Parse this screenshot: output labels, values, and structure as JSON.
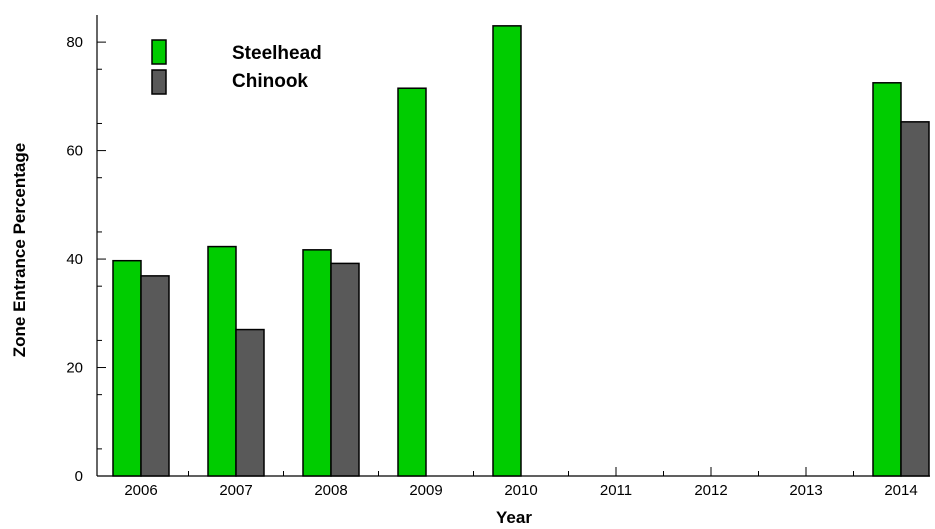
{
  "chart_data": {
    "type": "bar",
    "title": "",
    "xlabel": "Year",
    "ylabel": "Zone Entrance Percentage",
    "categories": [
      "2006",
      "2007",
      "2008",
      "2009",
      "2010",
      "2011",
      "2012",
      "2013",
      "2014"
    ],
    "series": [
      {
        "name": "Steelhead",
        "color": "#00cc00",
        "values": [
          39.7,
          42.3,
          41.7,
          71.5,
          83.0,
          null,
          null,
          null,
          72.5
        ]
      },
      {
        "name": "Chinook",
        "color": "#595959",
        "values": [
          36.9,
          27.0,
          39.2,
          null,
          null,
          null,
          null,
          null,
          65.3
        ]
      }
    ],
    "ylim": [
      0,
      85
    ],
    "yticks": [
      0,
      20,
      40,
      60,
      80
    ],
    "grid": false,
    "legend": "top-left"
  }
}
